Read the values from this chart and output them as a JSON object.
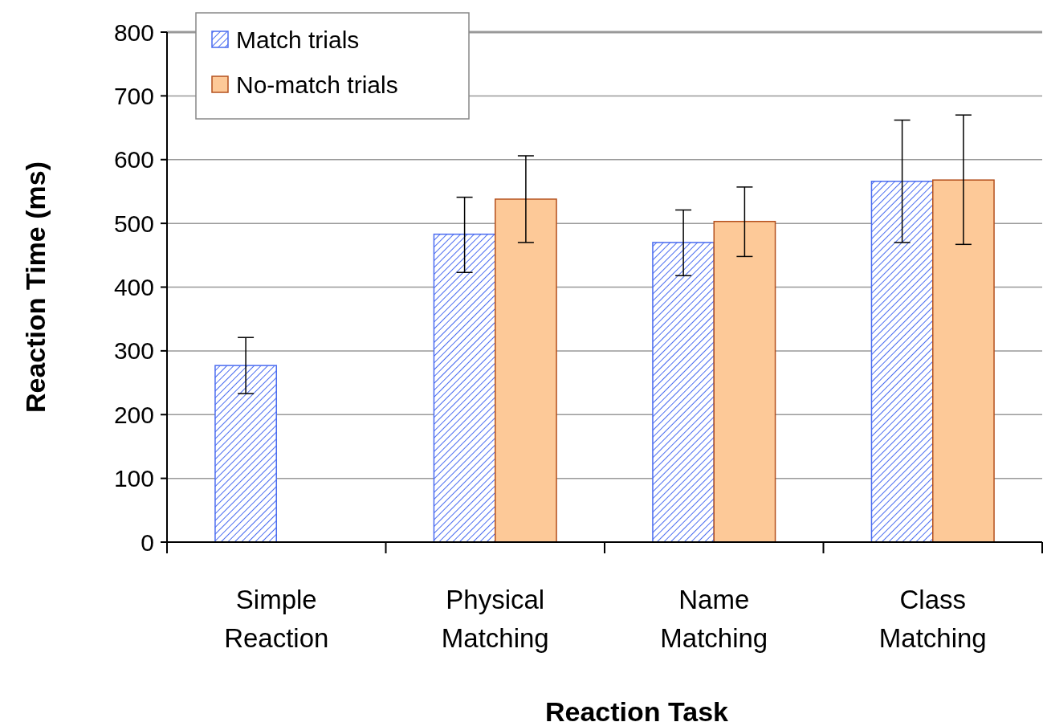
{
  "chart_data": {
    "type": "bar",
    "xlabel": "Reaction Task",
    "ylabel": "Reaction Time (ms)",
    "categories": [
      "Simple\nReaction",
      "Physical\nMatching",
      "Name\nMatching",
      "Class\nMatching"
    ],
    "series": [
      {
        "name": "Match trials",
        "color": "#4a6cf0",
        "values": [
          277,
          483,
          470,
          566
        ],
        "errors": [
          [
            233,
            321
          ],
          [
            423,
            541
          ],
          [
            418,
            521
          ],
          [
            470,
            662
          ]
        ]
      },
      {
        "name": "No-match trials",
        "color": "#fdc998",
        "values": [
          null,
          538,
          503,
          568
        ],
        "errors": [
          null,
          [
            470,
            606
          ],
          [
            448,
            557
          ],
          [
            467,
            670
          ]
        ]
      }
    ],
    "ylim": [
      0,
      800
    ],
    "yticks": [
      0,
      100,
      200,
      300,
      400,
      500,
      600,
      700,
      800
    ],
    "grid": "y",
    "legend": "top left"
  }
}
